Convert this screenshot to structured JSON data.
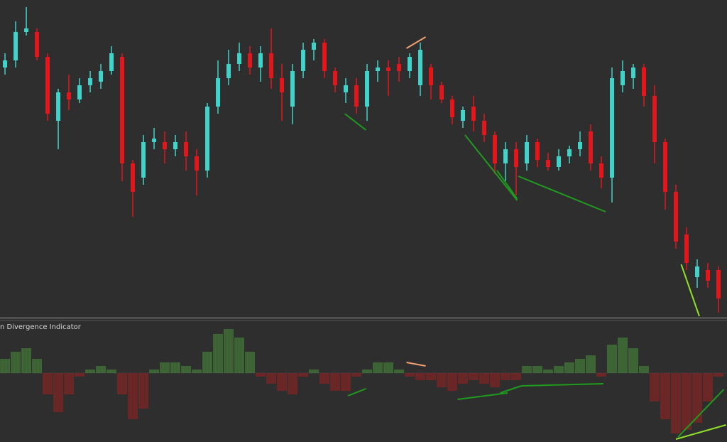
{
  "chart_data": [
    {
      "type": "candlestick",
      "open": [
        350,
        360,
        400,
        400,
        365,
        275,
        315,
        305,
        325,
        330,
        345,
        365,
        215,
        195,
        245,
        245,
        235,
        245,
        225,
        205,
        295,
        335,
        355,
        370,
        350,
        370,
        335,
        295,
        345,
        375,
        385,
        345,
        315,
        325,
        295,
        345,
        350,
        355,
        345,
        325,
        350,
        325,
        305,
        275,
        295,
        275,
        255,
        215,
        235,
        215,
        245,
        220,
        210,
        225,
        235,
        260,
        215,
        195,
        325,
        335,
        350,
        310,
        245,
        175,
        115,
        55,
        65,
        65
      ],
      "high": [
        370,
        415,
        435,
        405,
        370,
        320,
        340,
        335,
        345,
        355,
        380,
        370,
        220,
        255,
        265,
        260,
        255,
        260,
        235,
        300,
        360,
        375,
        385,
        380,
        380,
        405,
        355,
        355,
        385,
        390,
        390,
        350,
        335,
        335,
        355,
        360,
        360,
        365,
        370,
        385,
        355,
        330,
        310,
        295,
        310,
        285,
        260,
        245,
        245,
        255,
        250,
        230,
        235,
        240,
        260,
        270,
        225,
        350,
        360,
        355,
        355,
        325,
        250,
        185,
        125,
        80,
        75,
        70
      ],
      "low": [
        340,
        350,
        395,
        360,
        275,
        235,
        290,
        300,
        315,
        320,
        340,
        190,
        140,
        185,
        235,
        215,
        225,
        205,
        170,
        195,
        285,
        325,
        345,
        340,
        330,
        320,
        275,
        270,
        335,
        360,
        335,
        315,
        300,
        285,
        275,
        330,
        310,
        330,
        335,
        310,
        305,
        300,
        270,
        265,
        260,
        245,
        200,
        190,
        170,
        205,
        210,
        205,
        205,
        215,
        225,
        205,
        180,
        160,
        315,
        320,
        295,
        215,
        150,
        95,
        65,
        40,
        40,
        5
      ],
      "close": [
        360,
        400,
        405,
        365,
        285,
        315,
        305,
        325,
        335,
        345,
        370,
        215,
        175,
        245,
        250,
        235,
        245,
        225,
        205,
        295,
        335,
        355,
        370,
        350,
        370,
        335,
        315,
        345,
        375,
        385,
        345,
        325,
        325,
        295,
        345,
        350,
        345,
        345,
        365,
        375,
        325,
        305,
        280,
        290,
        275,
        255,
        215,
        235,
        210,
        245,
        220,
        210,
        225,
        235,
        245,
        215,
        195,
        335,
        345,
        350,
        310,
        245,
        175,
        105,
        75,
        70,
        50,
        25
      ],
      "bull_color": "#3fd3c9",
      "bear_color": "#e3161b",
      "xlim": [
        -0.47,
        67.8
      ],
      "ylim": [
        0,
        445
      ],
      "lines": [
        {
          "x": [
            31.9,
            33.9
          ],
          "values": [
            285,
            262
          ],
          "color": "#1f9a1f"
        },
        {
          "x": [
            37.7,
            39.5
          ],
          "values": [
            377,
            393
          ],
          "color": "#f0a070"
        },
        {
          "x": [
            43.2,
            48.1
          ],
          "values": [
            255,
            163
          ],
          "color": "#1f9a1f"
        },
        {
          "x": [
            46.2,
            48.1
          ],
          "values": [
            205,
            165
          ],
          "color": "#1f9a1f"
        },
        {
          "x": [
            48.2,
            56.4
          ],
          "values": [
            197,
            147
          ],
          "color": "#1f9a1f"
        },
        {
          "x": [
            63.5,
            65.2
          ],
          "values": [
            73,
            0
          ],
          "color": "#8fe02a"
        }
      ]
    },
    {
      "type": "bar",
      "title": "n Divergence Indicator",
      "values": [
        20,
        30,
        35,
        20,
        -30,
        -55,
        -30,
        -5,
        5,
        10,
        5,
        -30,
        -65,
        -50,
        5,
        15,
        15,
        10,
        5,
        30,
        55,
        62,
        50,
        30,
        -5,
        -15,
        -25,
        -30,
        -5,
        5,
        -15,
        -25,
        -25,
        -5,
        5,
        15,
        15,
        5,
        -5,
        -10,
        -10,
        -20,
        -25,
        -15,
        -10,
        -15,
        -20,
        -10,
        -10,
        10,
        10,
        5,
        10,
        15,
        20,
        25,
        -5,
        40,
        50,
        35,
        10,
        -40,
        -65,
        -85,
        -80,
        -70,
        -40,
        -5
      ],
      "positive_color": "#4c9a3c",
      "negative_color": "#a5201f",
      "xlim": [
        -0.47,
        67.8
      ],
      "ylim": [
        -97,
        75
      ],
      "lines": [
        {
          "x": [
            32.2,
            33.9
          ],
          "values": [
            -32,
            -22
          ],
          "color": "#1f9a1f"
        },
        {
          "x": [
            37.7,
            39.5
          ],
          "values": [
            15,
            10
          ],
          "color": "#f0a070"
        },
        {
          "x": [
            42.5,
            47.2
          ],
          "values": [
            -37,
            -28
          ],
          "color": "#1f9a1f"
        },
        {
          "x": [
            46.5,
            48.5
          ],
          "values": [
            -28,
            -18
          ],
          "color": "#1f9a1f"
        },
        {
          "x": [
            48.5,
            56.2
          ],
          "values": [
            -18,
            -15
          ],
          "color": "#1f9a1f"
        },
        {
          "x": [
            63.0,
            67.7
          ],
          "values": [
            -93,
            -73
          ],
          "color": "#8fe02a"
        },
        {
          "x": [
            63.2,
            67.5
          ],
          "values": [
            -90,
            -23
          ],
          "color": "#1f9a1f"
        }
      ]
    }
  ]
}
